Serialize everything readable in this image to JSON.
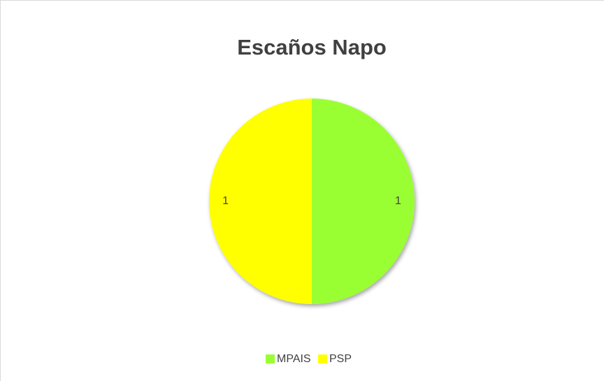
{
  "chart_data": {
    "type": "pie",
    "title": "Escaños Napo",
    "categories": [
      "MPAIS",
      "PSP"
    ],
    "values": [
      1,
      1
    ],
    "colors": [
      "#99ff33",
      "#ffff00"
    ],
    "legend": "bottom"
  }
}
